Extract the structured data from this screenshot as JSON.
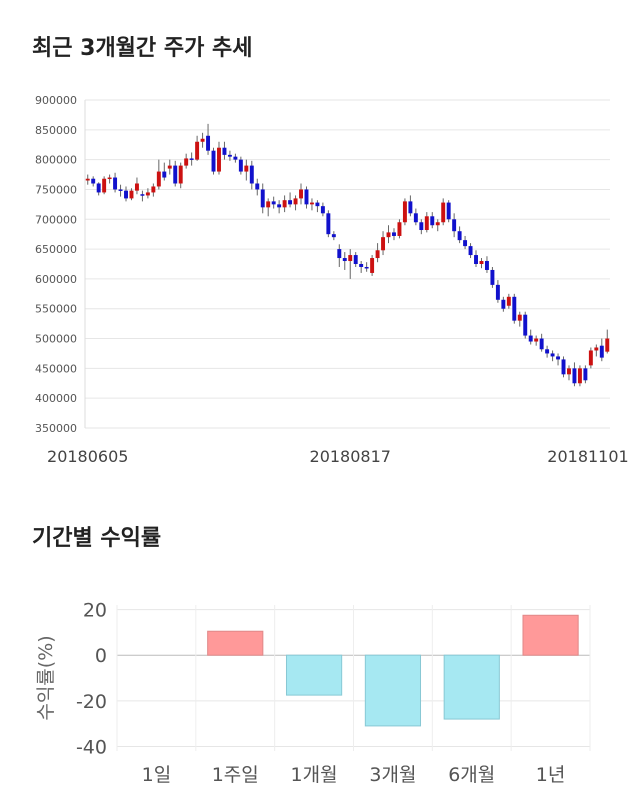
{
  "titles": {
    "price": "최근 3개월간 주가 추세",
    "returns": "기간별 수익률"
  },
  "chart_data": [
    {
      "type": "candlestick",
      "y_ticks": [
        "900000",
        "850000",
        "800000",
        "750000",
        "700000",
        "650000",
        "600000",
        "550000",
        "500000",
        "450000",
        "400000",
        "350000"
      ],
      "ylim": [
        350000,
        900000
      ],
      "x_ticks": [
        "20180605",
        "20180817",
        "20181101"
      ],
      "up_color": "#cc1111",
      "down_color": "#1111cc",
      "ohlc": [
        [
          765000,
          775000,
          758000,
          768000
        ],
        [
          768000,
          772000,
          755000,
          760000
        ],
        [
          760000,
          762000,
          740000,
          745000
        ],
        [
          745000,
          772000,
          742000,
          768000
        ],
        [
          768000,
          775000,
          760000,
          770000
        ],
        [
          770000,
          778000,
          745000,
          750000
        ],
        [
          750000,
          758000,
          738000,
          748000
        ],
        [
          748000,
          755000,
          730000,
          735000
        ],
        [
          735000,
          752000,
          732000,
          748000
        ],
        [
          748000,
          770000,
          742000,
          760000
        ],
        [
          742000,
          748000,
          730000,
          740000
        ],
        [
          740000,
          752000,
          735000,
          745000
        ],
        [
          745000,
          760000,
          738000,
          755000
        ],
        [
          755000,
          800000,
          750000,
          780000
        ],
        [
          780000,
          795000,
          765000,
          770000
        ],
        [
          785000,
          800000,
          775000,
          790000
        ],
        [
          790000,
          798000,
          755000,
          760000
        ],
        [
          760000,
          795000,
          752000,
          790000
        ],
        [
          790000,
          810000,
          785000,
          802000
        ],
        [
          802000,
          812000,
          790000,
          800000
        ],
        [
          800000,
          840000,
          798000,
          830000
        ],
        [
          830000,
          845000,
          820000,
          835000
        ],
        [
          840000,
          860000,
          808000,
          815000
        ],
        [
          815000,
          820000,
          775000,
          780000
        ],
        [
          780000,
          830000,
          775000,
          820000
        ],
        [
          820000,
          830000,
          800000,
          808000
        ],
        [
          808000,
          815000,
          798000,
          805000
        ],
        [
          805000,
          810000,
          795000,
          800000
        ],
        [
          800000,
          805000,
          775000,
          780000
        ],
        [
          780000,
          800000,
          765000,
          790000
        ],
        [
          790000,
          798000,
          750000,
          760000
        ],
        [
          760000,
          768000,
          740000,
          750000
        ],
        [
          750000,
          760000,
          710000,
          720000
        ],
        [
          720000,
          735000,
          705000,
          730000
        ],
        [
          730000,
          738000,
          718000,
          725000
        ],
        [
          725000,
          732000,
          710000,
          720000
        ],
        [
          720000,
          740000,
          712000,
          732000
        ],
        [
          732000,
          745000,
          720000,
          725000
        ],
        [
          725000,
          740000,
          715000,
          735000
        ],
        [
          735000,
          760000,
          725000,
          750000
        ],
        [
          750000,
          755000,
          718000,
          725000
        ],
        [
          725000,
          735000,
          715000,
          728000
        ],
        [
          728000,
          732000,
          712000,
          722000
        ],
        [
          722000,
          728000,
          705000,
          710000
        ],
        [
          710000,
          715000,
          670000,
          675000
        ],
        [
          675000,
          680000,
          665000,
          670000
        ],
        [
          650000,
          658000,
          620000,
          635000
        ],
        [
          635000,
          645000,
          615000,
          630000
        ],
        [
          630000,
          650000,
          600000,
          640000
        ],
        [
          640000,
          645000,
          620000,
          625000
        ],
        [
          625000,
          630000,
          610000,
          620000
        ],
        [
          620000,
          628000,
          612000,
          618000
        ],
        [
          610000,
          640000,
          605000,
          635000
        ],
        [
          635000,
          660000,
          628000,
          648000
        ],
        [
          648000,
          680000,
          640000,
          670000
        ],
        [
          670000,
          690000,
          660000,
          678000
        ],
        [
          678000,
          685000,
          665000,
          672000
        ],
        [
          672000,
          700000,
          668000,
          695000
        ],
        [
          695000,
          735000,
          690000,
          730000
        ],
        [
          730000,
          740000,
          705000,
          710000
        ],
        [
          710000,
          718000,
          690000,
          695000
        ],
        [
          695000,
          700000,
          675000,
          682000
        ],
        [
          682000,
          712000,
          678000,
          705000
        ],
        [
          705000,
          712000,
          685000,
          690000
        ],
        [
          690000,
          700000,
          680000,
          695000
        ],
        [
          695000,
          735000,
          690000,
          728000
        ],
        [
          728000,
          732000,
          695000,
          700000
        ],
        [
          700000,
          710000,
          670000,
          680000
        ],
        [
          680000,
          688000,
          660000,
          665000
        ],
        [
          665000,
          672000,
          650000,
          655000
        ],
        [
          655000,
          660000,
          635000,
          640000
        ],
        [
          640000,
          648000,
          620000,
          625000
        ],
        [
          625000,
          635000,
          618000,
          630000
        ],
        [
          630000,
          638000,
          610000,
          615000
        ],
        [
          615000,
          620000,
          585000,
          590000
        ],
        [
          590000,
          598000,
          560000,
          565000
        ],
        [
          565000,
          570000,
          545000,
          550000
        ],
        [
          555000,
          575000,
          550000,
          570000
        ],
        [
          570000,
          575000,
          525000,
          530000
        ],
        [
          530000,
          545000,
          520000,
          540000
        ],
        [
          540000,
          545000,
          500000,
          505000
        ],
        [
          505000,
          515000,
          490000,
          495000
        ],
        [
          495000,
          505000,
          488000,
          500000
        ],
        [
          500000,
          508000,
          478000,
          482000
        ],
        [
          482000,
          488000,
          468000,
          475000
        ],
        [
          475000,
          480000,
          462000,
          470000
        ],
        [
          470000,
          475000,
          455000,
          465000
        ],
        [
          465000,
          470000,
          435000,
          440000
        ],
        [
          440000,
          455000,
          430000,
          450000
        ],
        [
          450000,
          460000,
          420000,
          425000
        ],
        [
          425000,
          455000,
          420000,
          450000
        ],
        [
          450000,
          455000,
          425000,
          430000
        ],
        [
          455000,
          485000,
          450000,
          480000
        ],
        [
          480000,
          490000,
          470000,
          485000
        ],
        [
          488000,
          500000,
          462000,
          468000
        ],
        [
          478000,
          515000,
          475000,
          500000
        ]
      ]
    },
    {
      "type": "bar",
      "categories": [
        "1일",
        "1주일",
        "1개월",
        "3개월",
        "6개월",
        "1년"
      ],
      "values": [
        0,
        10.5,
        -17.5,
        -31,
        -28,
        17.5
      ],
      "ylabel": "수익률(%)",
      "y_ticks": [
        "20",
        "0",
        "-20",
        "-40"
      ],
      "ylim": [
        -42,
        22
      ],
      "positive_color": "#ff9999",
      "negative_color": "#a6e8f2"
    }
  ]
}
